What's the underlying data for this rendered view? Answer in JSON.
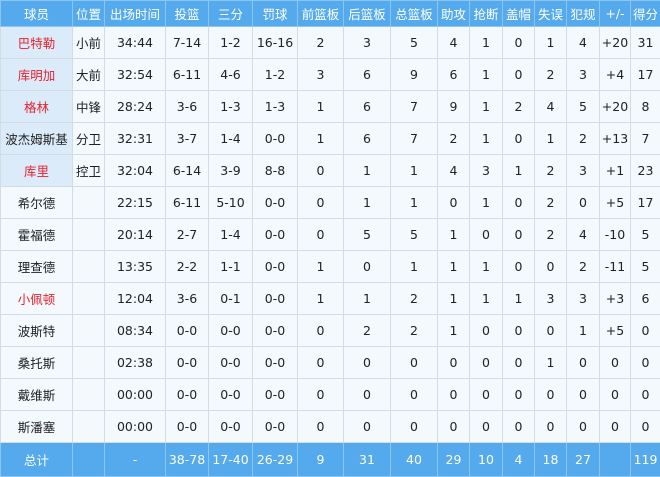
{
  "headers": [
    "球员",
    "位置",
    "出场时间",
    "投篮",
    "三分",
    "罚球",
    "前篮板",
    "后篮板",
    "总篮板",
    "助攻",
    "抢断",
    "盖帽",
    "失误",
    "犯规",
    "+/-",
    "得分"
  ],
  "colors": {
    "header_bg": "#55aaee",
    "starter_name_bg": "#dcebfa",
    "highlight_name": "#e8212c",
    "row_bg": "#f4f9fd"
  },
  "rows": [
    {
      "starter": true,
      "highlight": true,
      "cells": [
        "巴特勒",
        "小前",
        "34:44",
        "7-14",
        "1-2",
        "16-16",
        "2",
        "3",
        "5",
        "4",
        "1",
        "0",
        "1",
        "4",
        "+20",
        "31"
      ]
    },
    {
      "starter": true,
      "highlight": true,
      "cells": [
        "库明加",
        "大前",
        "32:54",
        "6-11",
        "4-6",
        "1-2",
        "3",
        "6",
        "9",
        "6",
        "1",
        "0",
        "2",
        "3",
        "+4",
        "17"
      ]
    },
    {
      "starter": true,
      "highlight": true,
      "cells": [
        "格林",
        "中锋",
        "28:24",
        "3-6",
        "1-3",
        "1-3",
        "1",
        "6",
        "7",
        "9",
        "1",
        "2",
        "4",
        "5",
        "+20",
        "8"
      ]
    },
    {
      "starter": true,
      "highlight": false,
      "cells": [
        "波杰姆斯基",
        "分卫",
        "32:31",
        "3-7",
        "1-4",
        "0-0",
        "1",
        "6",
        "7",
        "2",
        "1",
        "0",
        "1",
        "2",
        "+13",
        "7"
      ]
    },
    {
      "starter": true,
      "highlight": true,
      "cells": [
        "库里",
        "控卫",
        "32:04",
        "6-14",
        "3-9",
        "8-8",
        "0",
        "1",
        "1",
        "4",
        "3",
        "1",
        "2",
        "3",
        "+1",
        "23"
      ]
    },
    {
      "starter": false,
      "highlight": false,
      "cells": [
        "希尔德",
        "",
        "22:15",
        "6-11",
        "5-10",
        "0-0",
        "0",
        "1",
        "1",
        "0",
        "1",
        "0",
        "2",
        "0",
        "+5",
        "17"
      ]
    },
    {
      "starter": false,
      "highlight": false,
      "cells": [
        "霍福德",
        "",
        "20:14",
        "2-7",
        "1-4",
        "0-0",
        "0",
        "5",
        "5",
        "1",
        "0",
        "0",
        "2",
        "4",
        "-10",
        "5"
      ]
    },
    {
      "starter": false,
      "highlight": false,
      "cells": [
        "理查德",
        "",
        "13:35",
        "2-2",
        "1-1",
        "0-0",
        "1",
        "0",
        "1",
        "1",
        "1",
        "0",
        "0",
        "2",
        "-11",
        "5"
      ]
    },
    {
      "starter": false,
      "highlight": true,
      "cells": [
        "小佩顿",
        "",
        "12:04",
        "3-6",
        "0-1",
        "0-0",
        "1",
        "1",
        "2",
        "1",
        "1",
        "1",
        "3",
        "3",
        "+3",
        "6"
      ]
    },
    {
      "starter": false,
      "highlight": false,
      "cells": [
        "波斯特",
        "",
        "08:34",
        "0-0",
        "0-0",
        "0-0",
        "0",
        "2",
        "2",
        "1",
        "0",
        "0",
        "0",
        "1",
        "+5",
        "0"
      ]
    },
    {
      "starter": false,
      "highlight": false,
      "cells": [
        "桑托斯",
        "",
        "02:38",
        "0-0",
        "0-0",
        "0-0",
        "0",
        "0",
        "0",
        "0",
        "0",
        "0",
        "1",
        "0",
        "0",
        "0"
      ]
    },
    {
      "starter": false,
      "highlight": false,
      "cells": [
        "戴维斯",
        "",
        "00:00",
        "0-0",
        "0-0",
        "0-0",
        "0",
        "0",
        "0",
        "0",
        "0",
        "0",
        "0",
        "0",
        "0",
        "0"
      ]
    },
    {
      "starter": false,
      "highlight": false,
      "cells": [
        "斯潘塞",
        "",
        "00:00",
        "0-0",
        "0-0",
        "0-0",
        "0",
        "0",
        "0",
        "0",
        "0",
        "0",
        "0",
        "0",
        "0",
        "0"
      ]
    }
  ],
  "total": [
    "总计",
    "",
    "-",
    "38-78",
    "17-40",
    "26-29",
    "9",
    "31",
    "40",
    "29",
    "10",
    "4",
    "18",
    "27",
    "",
    "119"
  ]
}
